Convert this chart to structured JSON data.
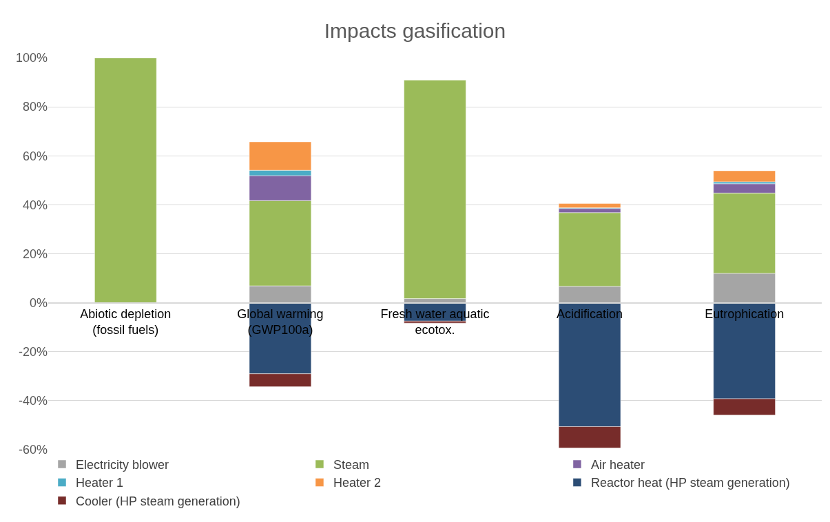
{
  "chart_data": {
    "type": "bar",
    "title": "Impacts gasification",
    "stacked": true,
    "categories": [
      "Abiotic depletion (fossil fuels)",
      "Global warming (GWP100a)",
      "Fresh water aquatic ecotox.",
      "Acidification",
      "Eutrophication"
    ],
    "series": [
      {
        "name": "Electricity blower",
        "color": "#a5a5a5",
        "values": [
          null,
          6.9,
          1.7,
          6.7,
          12.0
        ]
      },
      {
        "name": "Steam",
        "color": "#9bbb59",
        "values": [
          100,
          34.8,
          89.2,
          30.1,
          32.8
        ]
      },
      {
        "name": "Air heater",
        "color": "#8064a2",
        "values": [
          null,
          10.2,
          null,
          1.7,
          3.8
        ]
      },
      {
        "name": "Heater 1",
        "color": "#4bacc6",
        "values": [
          null,
          2.2,
          null,
          0.3,
          0.8
        ]
      },
      {
        "name": "Heater 2",
        "color": "#f79646",
        "values": [
          null,
          11.6,
          null,
          1.7,
          4.5
        ]
      },
      {
        "name": "Reactor heat (HP steam generation)",
        "color": "#2c4d75",
        "values": [
          null,
          -29.0,
          -7.5,
          -50.6,
          -39.2
        ]
      },
      {
        "name": "Cooler (HP steam generation)",
        "color": "#772c2a",
        "values": [
          null,
          -5.3,
          -0.8,
          -8.7,
          -6.7
        ]
      }
    ],
    "ylim": [
      -60,
      100
    ],
    "yticks": [
      {
        "value": -60,
        "label": "-60%"
      },
      {
        "value": -40,
        "label": "-40%"
      },
      {
        "value": -20,
        "label": "-20%"
      },
      {
        "value": 0,
        "label": "0%"
      },
      {
        "value": 20,
        "label": "20%"
      },
      {
        "value": 40,
        "label": "40%"
      },
      {
        "value": 60,
        "label": "60%"
      },
      {
        "value": 80,
        "label": "80%"
      },
      {
        "value": 100,
        "label": "100%"
      }
    ],
    "grid": "y",
    "legend": "bottom"
  }
}
